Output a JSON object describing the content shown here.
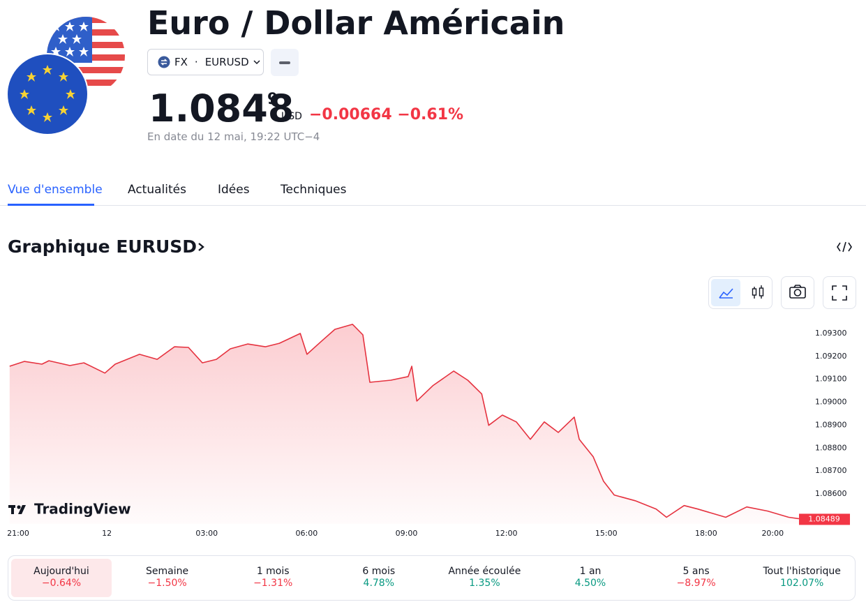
{
  "header": {
    "title": "Euro / Dollar Américain",
    "exchange": "FX",
    "separator": "·",
    "symbol": "EURUSD",
    "price": "1.0848",
    "price_last_digit": "9",
    "currency": "USD",
    "change": "−0.00664",
    "change_percent": "−0.61%",
    "timestamp": "En date du 12 mai, 19:22 UTC−4"
  },
  "tabs": [
    "Vue d'ensemble",
    "Actualités",
    "Idées",
    "Techniques"
  ],
  "section_title": "Graphique EURUSD",
  "chart_data": {
    "type": "line",
    "watermark": "TradingView",
    "color": "#e5323f",
    "x": [
      0.08,
      0.52,
      1.05,
      1.26,
      1.89,
      2.31,
      2.94,
      3.25,
      3.98,
      4.51,
      5.03,
      5.45,
      5.87,
      6.29,
      6.71,
      7.23,
      7.76,
      8.18,
      8.81,
      9.01,
      9.43,
      9.85,
      10.38,
      10.69,
      10.9,
      11.53,
      12.05,
      12.16,
      12.31,
      12.79,
      13.42,
      13.84,
      14.26,
      14.47,
      14.88,
      15.3,
      15.72,
      16.14,
      16.56,
      17.04,
      17.19,
      17.61,
      17.92,
      18.24,
      18.87,
      19.5,
      19.81,
      20.34,
      20.75,
      21.59,
      22.22,
      22.85,
      23.48,
      23.94
    ],
    "values": [
      1.09157,
      1.09178,
      1.09166,
      1.09181,
      1.0916,
      1.09172,
      1.09127,
      1.09166,
      1.09209,
      1.09187,
      1.09242,
      1.09239,
      1.09172,
      1.09187,
      1.09233,
      1.09254,
      1.09242,
      1.09257,
      1.093,
      1.09209,
      1.09264,
      1.09318,
      1.0934,
      1.09294,
      1.09087,
      1.09096,
      1.09112,
      1.09157,
      1.09005,
      1.09072,
      1.09136,
      1.09096,
      1.09036,
      1.08899,
      1.08944,
      1.08914,
      1.08838,
      1.08914,
      1.08868,
      1.08935,
      1.08838,
      1.08762,
      1.08655,
      1.08595,
      1.0857,
      1.08534,
      1.08498,
      1.08549,
      1.08534,
      1.08498,
      1.08543,
      1.08525,
      1.08498,
      1.08489
    ],
    "xlim": [
      0,
      24
    ],
    "xticks": [
      {
        "value": 0,
        "label": "21:00"
      },
      {
        "value": 3,
        "label": "12"
      },
      {
        "value": 6,
        "label": "03:00"
      },
      {
        "value": 9,
        "label": "06:00"
      },
      {
        "value": 12,
        "label": "09:00"
      },
      {
        "value": 15,
        "label": "12:00"
      },
      {
        "value": 18,
        "label": "15:00"
      },
      {
        "value": 21,
        "label": "18:00"
      },
      {
        "value": 23,
        "label": "20:00"
      }
    ],
    "ylim": [
      1.0847,
      1.0937
    ],
    "yticks": [
      {
        "value": 1.093,
        "label": "1.09300"
      },
      {
        "value": 1.092,
        "label": "1.09200"
      },
      {
        "value": 1.091,
        "label": "1.09100"
      },
      {
        "value": 1.09,
        "label": "1.09000"
      },
      {
        "value": 1.089,
        "label": "1.08900"
      },
      {
        "value": 1.088,
        "label": "1.08800"
      },
      {
        "value": 1.087,
        "label": "1.08700"
      },
      {
        "value": 1.086,
        "label": "1.08600"
      }
    ],
    "grid": false,
    "price_label": {
      "value": 1.08489,
      "label": "1.08489"
    }
  },
  "performance": [
    {
      "label": "Aujourd'hui",
      "value": "−0.64%",
      "color": "#f23645"
    },
    {
      "label": "Semaine",
      "value": "−1.50%",
      "color": "#f23645"
    },
    {
      "label": "1 mois",
      "value": "−1.31%",
      "color": "#f23645"
    },
    {
      "label": "6 mois",
      "value": "4.78%",
      "color": "#089981"
    },
    {
      "label": "Année écoulée",
      "value": "1.35%",
      "color": "#089981"
    },
    {
      "label": "1 an",
      "value": "4.50%",
      "color": "#089981"
    },
    {
      "label": "5 ans",
      "value": "−8.97%",
      "color": "#f23645"
    },
    {
      "label": "Tout l'historique",
      "value": "102.07%",
      "color": "#089981"
    }
  ]
}
